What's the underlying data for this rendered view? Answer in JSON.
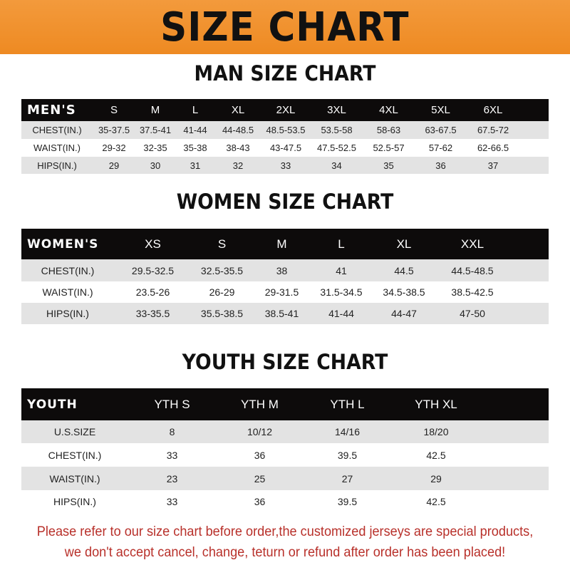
{
  "title": "SIZE CHART",
  "colors": {
    "banner": "#ee8a22",
    "header_row": "#0d0b0b",
    "note": "#b8302a"
  },
  "men": {
    "heading": "MAN SIZE CHART",
    "columns": [
      "MEN'S",
      "S",
      "M",
      "L",
      "XL",
      "2XL",
      "3XL",
      "4XL",
      "5XL",
      "6XL"
    ],
    "rows": [
      [
        "CHEST(IN.)",
        "35-37.5",
        "37.5-41",
        "41-44",
        "44-48.5",
        "48.5-53.5",
        "53.5-58",
        "58-63",
        "63-67.5",
        "67.5-72"
      ],
      [
        "WAIST(IN.)",
        "29-32",
        "32-35",
        "35-38",
        "38-43",
        "43-47.5",
        "47.5-52.5",
        "52.5-57",
        "57-62",
        "62-66.5"
      ],
      [
        "HIPS(IN.)",
        "29",
        "30",
        "31",
        "32",
        "33",
        "34",
        "35",
        "36",
        "37"
      ]
    ]
  },
  "women": {
    "heading": "WOMEN SIZE CHART",
    "columns": [
      "WOMEN'S",
      "XS",
      "S",
      "M",
      "L",
      "XL",
      "XXL"
    ],
    "rows": [
      [
        "CHEST(IN.)",
        "29.5-32.5",
        "32.5-35.5",
        "38",
        "41",
        "44.5",
        "44.5-48.5"
      ],
      [
        "WAIST(IN.)",
        "23.5-26",
        "26-29",
        "29-31.5",
        "31.5-34.5",
        "34.5-38.5",
        "38.5-42.5"
      ],
      [
        "HIPS(IN.)",
        "33-35.5",
        "35.5-38.5",
        "38.5-41",
        "41-44",
        "44-47",
        "47-50"
      ]
    ]
  },
  "youth": {
    "heading": "YOUTH SIZE CHART",
    "columns": [
      "YOUTH",
      "YTH S",
      "YTH M",
      "YTH L",
      "YTH XL"
    ],
    "rows": [
      [
        "U.S.SIZE",
        "8",
        "10/12",
        "14/16",
        "18/20"
      ],
      [
        "CHEST(IN.)",
        "33",
        "36",
        "39.5",
        "42.5"
      ],
      [
        "WAIST(IN.)",
        "23",
        "25",
        "27",
        "29"
      ],
      [
        "HIPS(IN.)",
        "33",
        "36",
        "39.5",
        "42.5"
      ]
    ]
  },
  "note": {
    "line1": "Please refer to our size chart before order,the customized jerseys are special products,",
    "line2": "we don't accept cancel, change, teturn or refund after order has been placed!"
  }
}
